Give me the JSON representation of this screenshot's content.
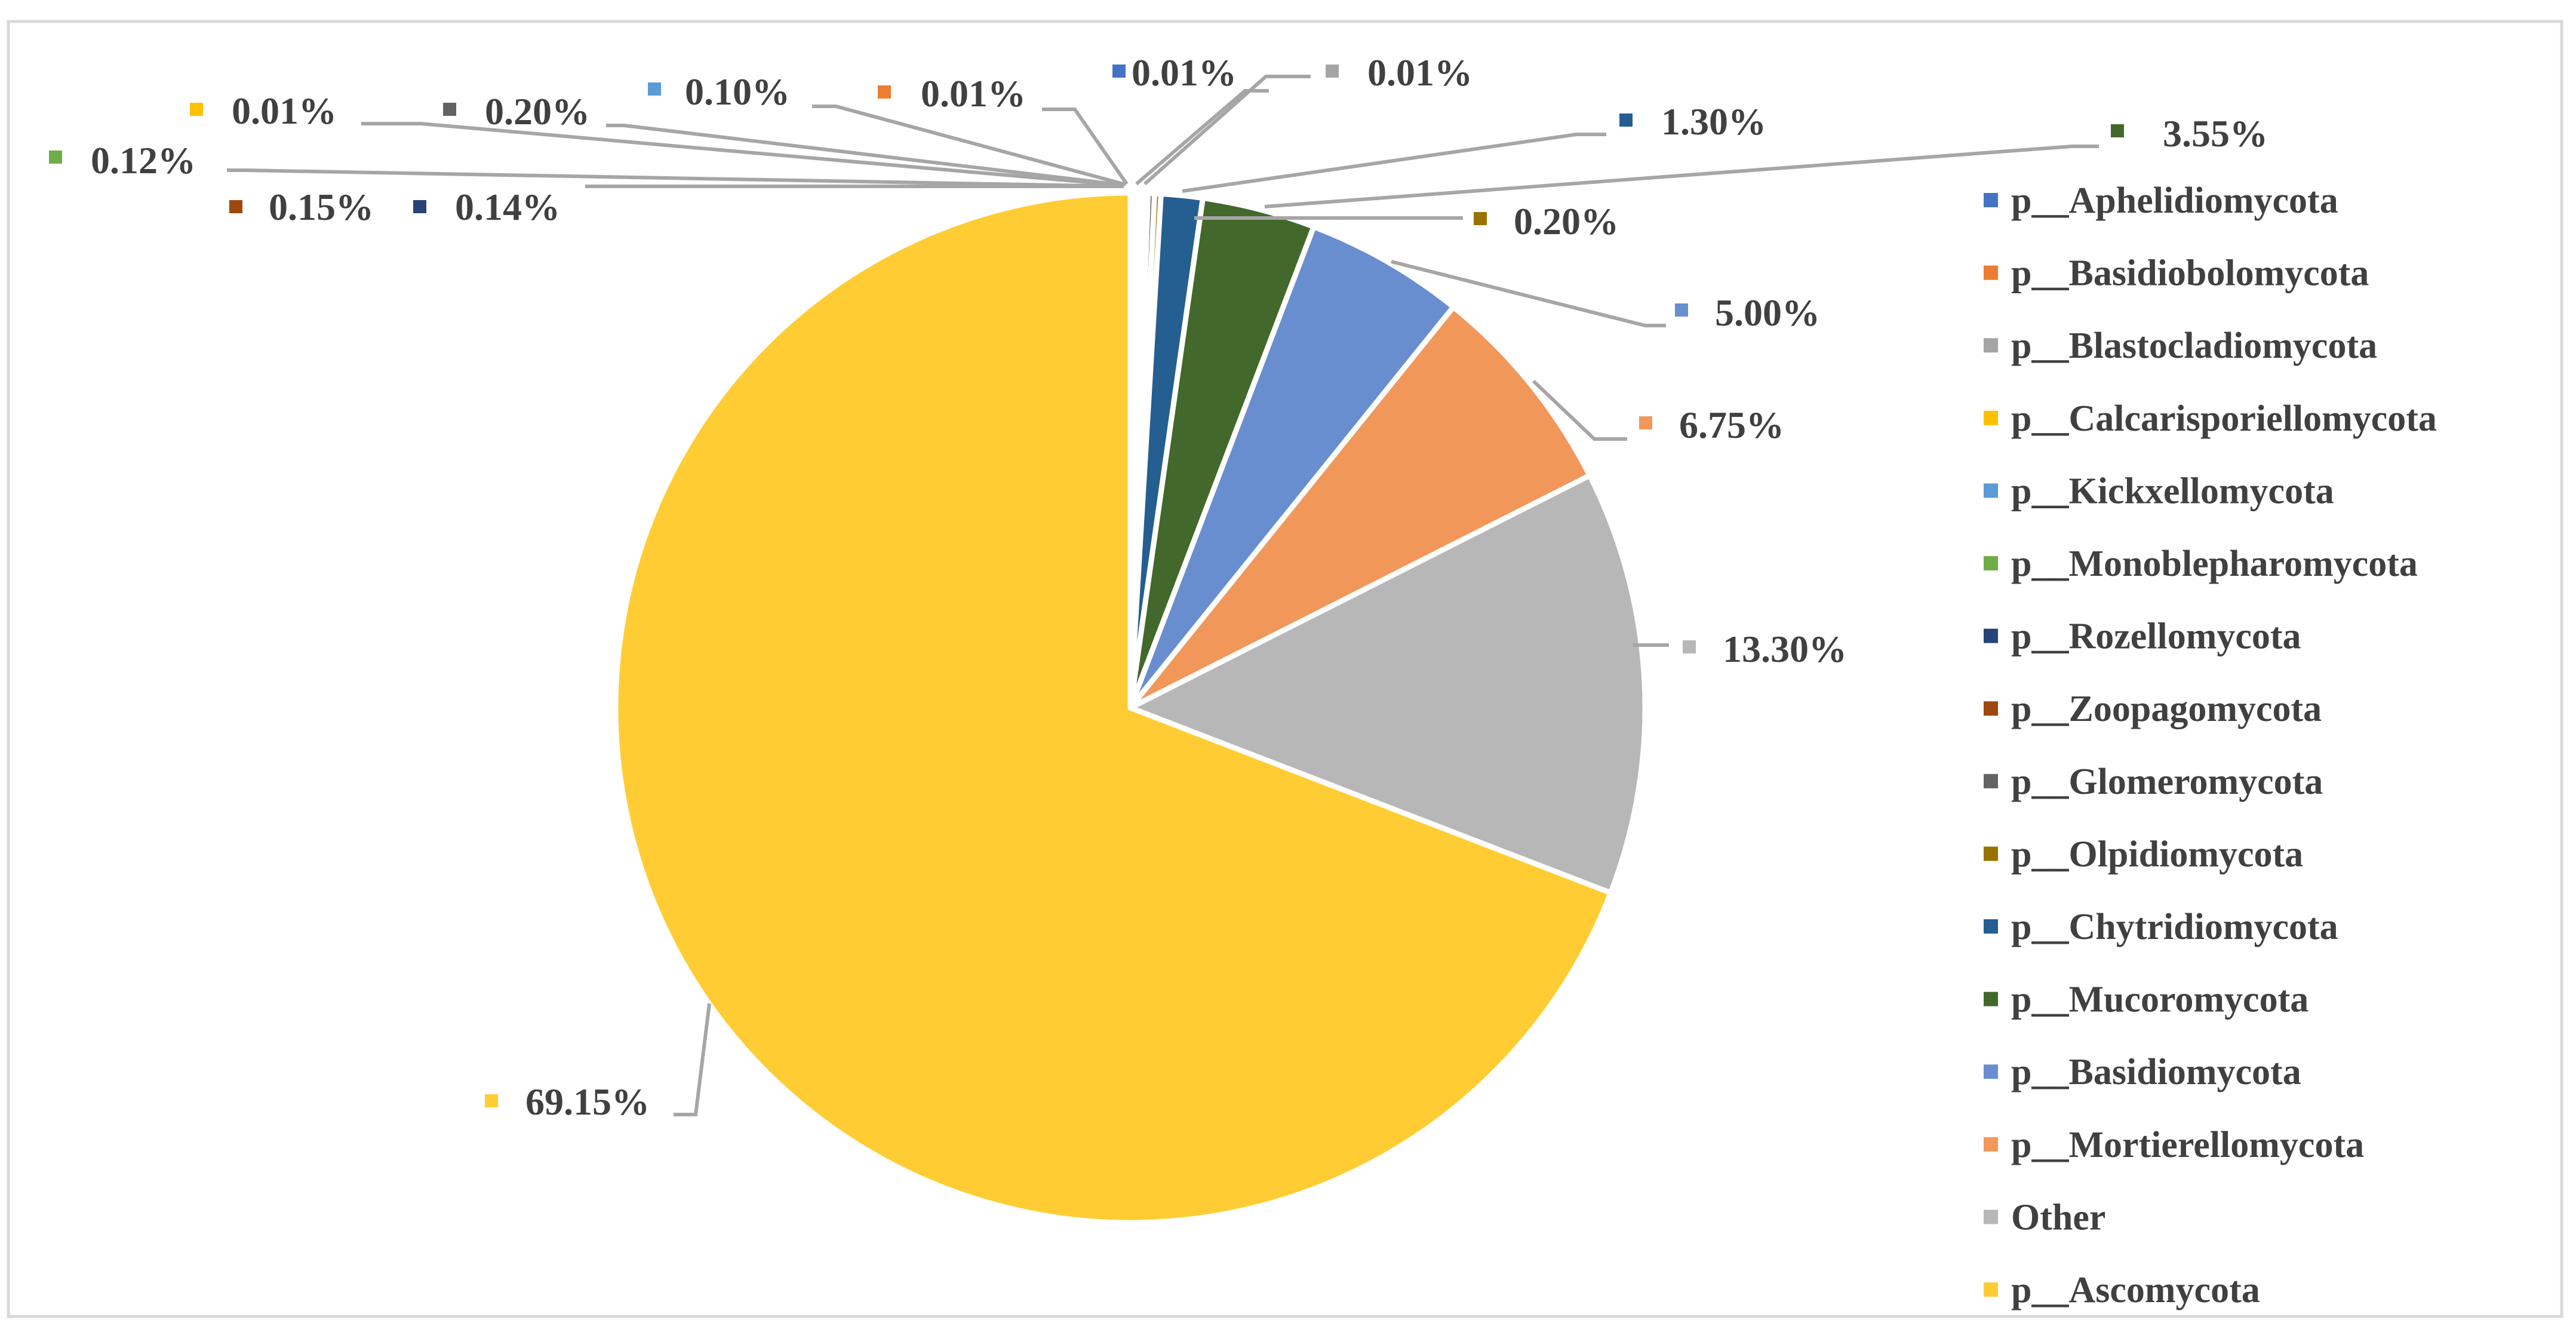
{
  "chart_data": {
    "type": "pie",
    "title": "",
    "legend_placement": "right",
    "start_angle_deg": 0,
    "direction": "clockwise",
    "slices": [
      {
        "name": "p__Aphelidiomycota",
        "value": 0.01,
        "label": "0.01%",
        "color": "#4472C4"
      },
      {
        "name": "p__Basidiobolomycota",
        "value": 0.01,
        "label": "0.01%",
        "color": "#ED7D31"
      },
      {
        "name": "p__Blastocladiomycota",
        "value": 0.01,
        "label": "0.01%",
        "color": "#A5A5A5"
      },
      {
        "name": "p__Calcarisporiellomycota",
        "value": 0.01,
        "label": "0.01%",
        "color": "#FFC000"
      },
      {
        "name": "p__Kickxellomycota",
        "value": 0.1,
        "label": "0.10%",
        "color": "#5B9BD5"
      },
      {
        "name": "p__Monoblepharomycota",
        "value": 0.12,
        "label": "0.12%",
        "color": "#70AD47"
      },
      {
        "name": "p__Rozellomycota",
        "value": 0.14,
        "label": "0.14%",
        "color": "#264478"
      },
      {
        "name": "p__Zoopagomycota",
        "value": 0.15,
        "label": "0.15%",
        "color": "#9E480E"
      },
      {
        "name": "p__Glomeromycota",
        "value": 0.2,
        "label": "0.20%",
        "color": "#636363"
      },
      {
        "name": "p__Olpidiomycota",
        "value": 0.2,
        "label": "0.20%",
        "color": "#997300"
      },
      {
        "name": "p__Chytridiomycota",
        "value": 1.3,
        "label": "1.30%",
        "color": "#255E91"
      },
      {
        "name": "p__Mucoromycota",
        "value": 3.55,
        "label": "3.55%",
        "color": "#43682B"
      },
      {
        "name": "p__Basidiomycota",
        "value": 5.0,
        "label": "5.00%",
        "color": "#698ED0"
      },
      {
        "name": "p__Mortierellomycota",
        "value": 6.75,
        "label": "6.75%",
        "color": "#F1975A"
      },
      {
        "name": "Other",
        "value": 13.3,
        "label": "13.30%",
        "color": "#B7B7B7"
      },
      {
        "name": "p__Ascomycota",
        "value": 69.15,
        "label": "69.15%",
        "color": "#FFCD33"
      }
    ],
    "legend_order": [
      "p__Aphelidiomycota",
      "p__Basidiobolomycota",
      "p__Blastocladiomycota",
      "p__Calcarisporiellomycota",
      "p__Kickxellomycota",
      "p__Monoblepharomycota",
      "p__Rozellomycota",
      "p__Zoopagomycota",
      "p__Glomeromycota",
      "p__Olpidiomycota",
      "p__Chytridiomycota",
      "p__Mucoromycota",
      "p__Basidiomycota",
      "p__Mortierellomycota",
      "Other",
      "p__Ascomycota"
    ]
  }
}
